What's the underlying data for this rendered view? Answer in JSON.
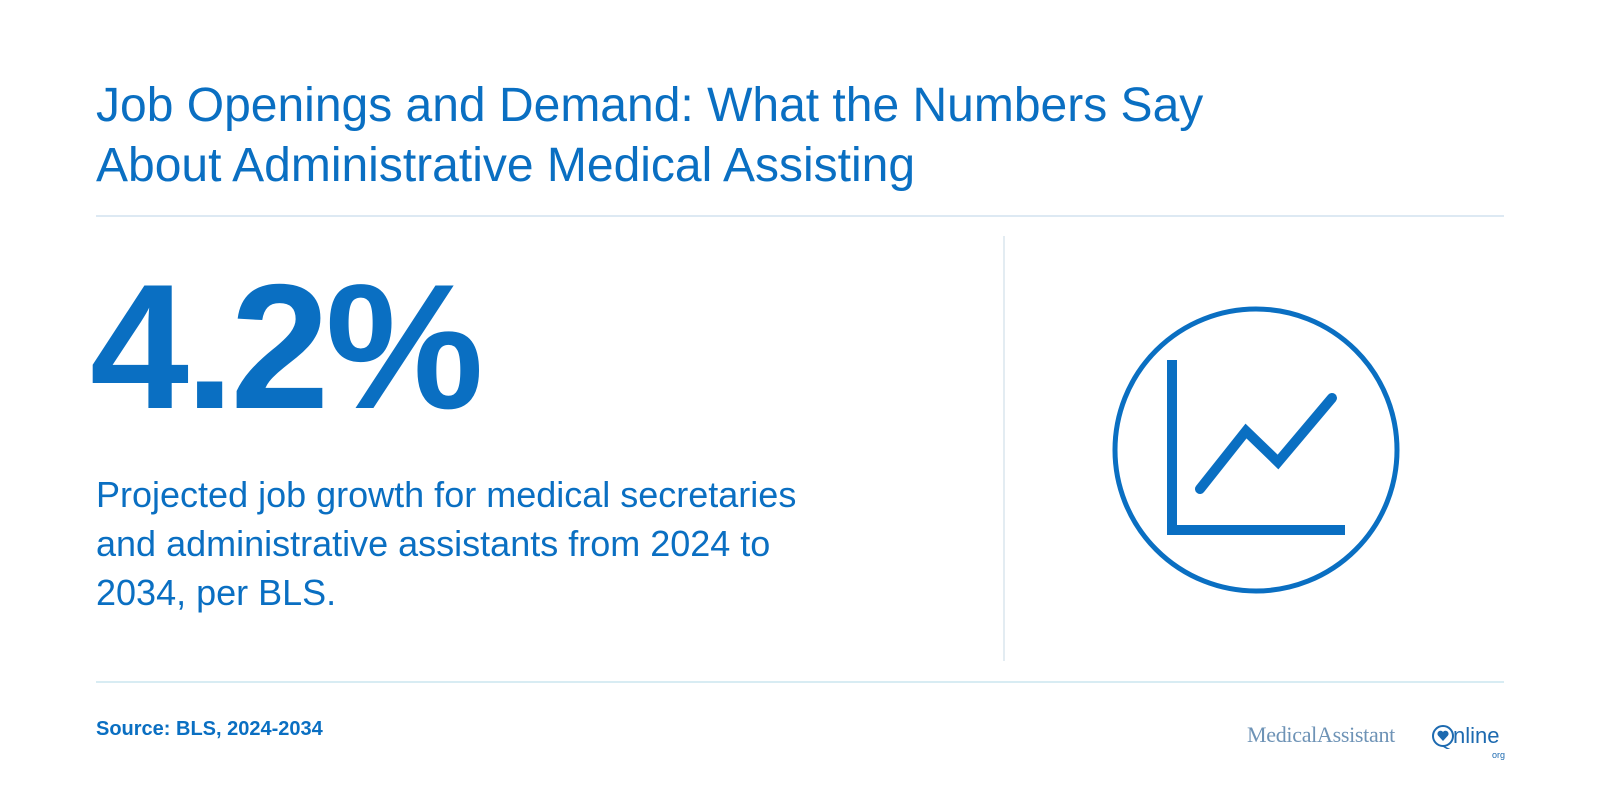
{
  "title": {
    "line1": "Job Openings and Demand: What the Numbers Say",
    "line2": "About Administrative Medical Assisting"
  },
  "stat": {
    "value": "4.2%",
    "description_line1": "Projected job growth for medical secretaries",
    "description_line2": "and administrative assistants from 2024 to",
    "description_line3": "2034, per BLS."
  },
  "icon": "line-chart-icon",
  "footer": {
    "source": "Source: BLS, 2024-2034",
    "logo_medical_assistant": "MedicalAssistant",
    "logo_online": "nline",
    "logo_org": "org"
  },
  "colors": {
    "primary": "#0a6fc2",
    "divider": "#dde9f3",
    "logo_muted": "#6e93b6"
  }
}
